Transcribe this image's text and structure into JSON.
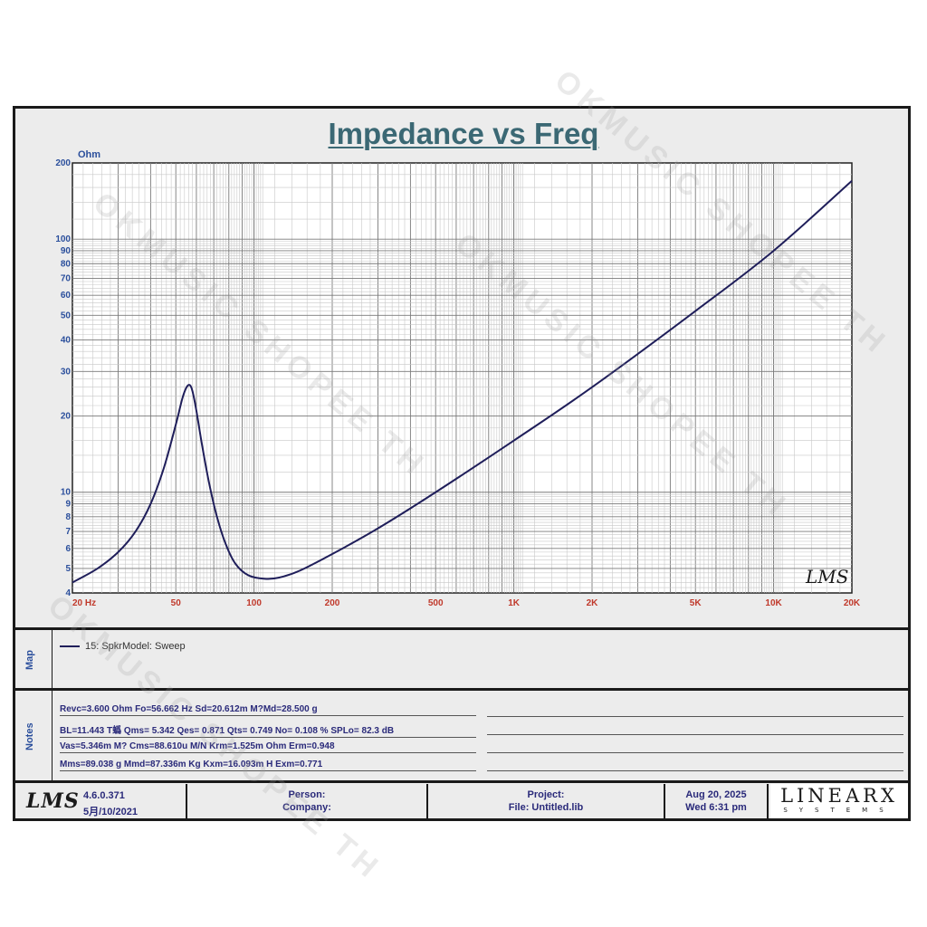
{
  "title": "Impedance vs Freq",
  "colors": {
    "curve": "#1f1e5a",
    "title": "#3b6874",
    "axis_labels": "#c0392b",
    "ohm_unit": "#2b4f9c",
    "notes_text": "#2a2a7a"
  },
  "chart_data": {
    "type": "line",
    "title": "Impedance vs Freq",
    "ylabel": "Ohm",
    "xlabel": "",
    "xscale": "log",
    "yscale": "log",
    "xlim": [
      20,
      20000
    ],
    "ylim": [
      4,
      200
    ],
    "grid": true,
    "x_ticks": [
      {
        "value": 20,
        "label": "20  Hz"
      },
      {
        "value": 50,
        "label": "50"
      },
      {
        "value": 100,
        "label": "100"
      },
      {
        "value": 200,
        "label": "200"
      },
      {
        "value": 500,
        "label": "500"
      },
      {
        "value": 1000,
        "label": "1K"
      },
      {
        "value": 2000,
        "label": "2K"
      },
      {
        "value": 5000,
        "label": "5K"
      },
      {
        "value": 10000,
        "label": "10K"
      },
      {
        "value": 20000,
        "label": "20K"
      }
    ],
    "y_ticks": [
      {
        "value": 4,
        "label": "4"
      },
      {
        "value": 5,
        "label": "5"
      },
      {
        "value": 6,
        "label": "6"
      },
      {
        "value": 7,
        "label": "7"
      },
      {
        "value": 8,
        "label": "8"
      },
      {
        "value": 9,
        "label": "9"
      },
      {
        "value": 10,
        "label": "10"
      },
      {
        "value": 20,
        "label": "20"
      },
      {
        "value": 30,
        "label": "30"
      },
      {
        "value": 40,
        "label": "40"
      },
      {
        "value": 50,
        "label": "50"
      },
      {
        "value": 60,
        "label": "60"
      },
      {
        "value": 70,
        "label": "70"
      },
      {
        "value": 80,
        "label": "80"
      },
      {
        "value": 90,
        "label": "90"
      },
      {
        "value": 100,
        "label": "100"
      },
      {
        "value": 200,
        "label": "200"
      }
    ],
    "series": [
      {
        "name": "15: SpkrModel: Sweep",
        "x": [
          20,
          25,
          30,
          35,
          40,
          45,
          50,
          53,
          55,
          56.66,
          58,
          60,
          63,
          67,
          72,
          78,
          85,
          95,
          110,
          125,
          150,
          200,
          300,
          500,
          1000,
          2000,
          5000,
          10000,
          20000
        ],
        "y": [
          4.4,
          5.0,
          5.8,
          7.0,
          9.0,
          12.5,
          18.5,
          23.5,
          26.0,
          26.5,
          25.0,
          21.0,
          15.5,
          11.0,
          8.0,
          6.2,
          5.2,
          4.7,
          4.55,
          4.6,
          4.9,
          5.7,
          7.2,
          10.0,
          16.0,
          26.0,
          52.0,
          90.0,
          170.0
        ]
      }
    ]
  },
  "map": {
    "label": "Map",
    "legend_entry": "15: SpkrModel: Sweep"
  },
  "notes": {
    "label": "Notes",
    "rows": [
      "Revc=3.600 Ohm  Fo=56.662 Hz  Sd=20.612m M?Md=28.500 g",
      "BL=11.443 T蟡  Qms= 5.342  Qes= 0.871  Qts= 0.749  No= 0.108 %  SPLo= 82.3 dB",
      "Vas=5.346m M? Cms=88.610u M/N  Krm=1.525m Ohm  Erm=0.948",
      "Mms=89.038 g  Mmd=87.336m Kg  Kxm=16.093m H  Exm=0.771"
    ]
  },
  "footer": {
    "logo": "LMS",
    "version": "4.6.0.371",
    "date_built": "5月/10/2021",
    "person_label": "Person:",
    "company_label": "Company:",
    "project_label": "Project:",
    "file_label": "File: Untitled.lib",
    "date": "Aug 20, 2025",
    "time": "Wed  6:31 pm",
    "brand": "LINEARX",
    "brand_sub": "SYSTEMS"
  },
  "chart_logo": "LMS",
  "watermark": "OKMUSIC SHOPEE TH"
}
